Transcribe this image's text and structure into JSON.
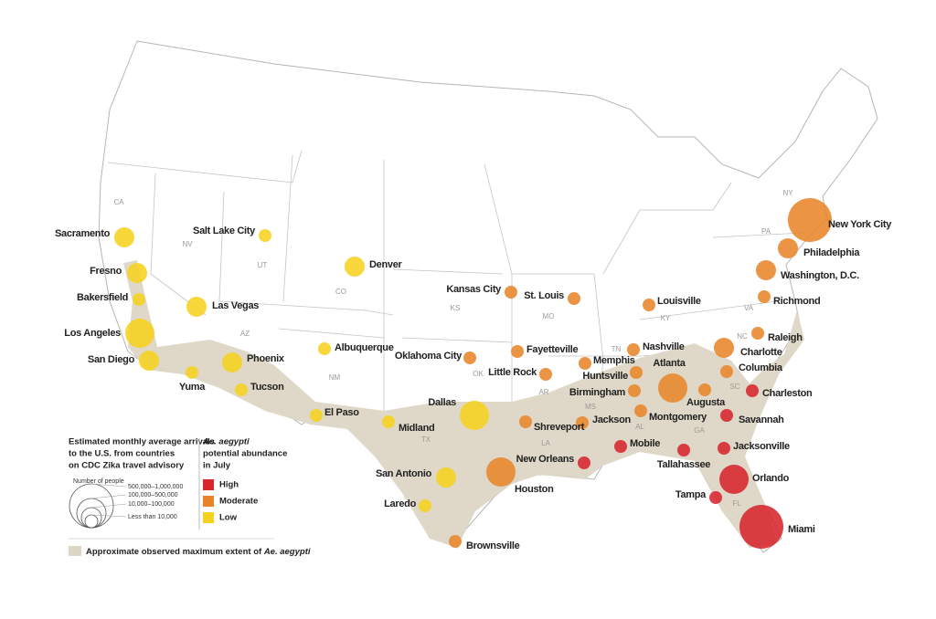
{
  "map": {
    "states": [
      "CA",
      "NV",
      "UT",
      "AZ",
      "CO",
      "NM",
      "KS",
      "MO",
      "OK",
      "TX",
      "AR",
      "LA",
      "MS",
      "AL",
      "GA",
      "FL",
      "SC",
      "NC",
      "TN",
      "KY",
      "VA",
      "PA",
      "NY"
    ],
    "cities": [
      {
        "name": "Sacramento",
        "abundance": "Low",
        "arrivals": "10,000–100,000"
      },
      {
        "name": "Fresno",
        "abundance": "Low",
        "arrivals": "10,000–100,000"
      },
      {
        "name": "Bakersfield",
        "abundance": "Low",
        "arrivals": "Less than 10,000"
      },
      {
        "name": "Los Angeles",
        "abundance": "Low",
        "arrivals": "100,000–500,000"
      },
      {
        "name": "San Diego",
        "abundance": "Low",
        "arrivals": "10,000–100,000"
      },
      {
        "name": "Salt Lake City",
        "abundance": "Low",
        "arrivals": "Less than 10,000"
      },
      {
        "name": "Las Vegas",
        "abundance": "Low",
        "arrivals": "10,000–100,000"
      },
      {
        "name": "Denver",
        "abundance": "Low",
        "arrivals": "10,000–100,000"
      },
      {
        "name": "Albuquerque",
        "abundance": "Low",
        "arrivals": "Less than 10,000"
      },
      {
        "name": "Phoenix",
        "abundance": "Low",
        "arrivals": "10,000–100,000"
      },
      {
        "name": "Tucson",
        "abundance": "Low",
        "arrivals": "Less than 10,000"
      },
      {
        "name": "Yuma",
        "abundance": "Low",
        "arrivals": "Less than 10,000"
      },
      {
        "name": "El Paso",
        "abundance": "Low",
        "arrivals": "Less than 10,000"
      },
      {
        "name": "Midland",
        "abundance": "Low",
        "arrivals": "Less than 10,000"
      },
      {
        "name": "Dallas",
        "abundance": "Low",
        "arrivals": "100,000–500,000"
      },
      {
        "name": "San Antonio",
        "abundance": "Low",
        "arrivals": "10,000–100,000"
      },
      {
        "name": "Laredo",
        "abundance": "Low",
        "arrivals": "Less than 10,000"
      },
      {
        "name": "Kansas City",
        "abundance": "Moderate",
        "arrivals": "Less than 10,000"
      },
      {
        "name": "St. Louis",
        "abundance": "Moderate",
        "arrivals": "Less than 10,000"
      },
      {
        "name": "Louisville",
        "abundance": "Moderate",
        "arrivals": "Less than 10,000"
      },
      {
        "name": "Oklahoma City",
        "abundance": "Moderate",
        "arrivals": "Less than 10,000"
      },
      {
        "name": "Fayetteville",
        "abundance": "Moderate",
        "arrivals": "Less than 10,000"
      },
      {
        "name": "Little Rock",
        "abundance": "Moderate",
        "arrivals": "Less than 10,000"
      },
      {
        "name": "Memphis",
        "abundance": "Moderate",
        "arrivals": "Less than 10,000"
      },
      {
        "name": "Nashville",
        "abundance": "Moderate",
        "arrivals": "Less than 10,000"
      },
      {
        "name": "Huntsville",
        "abundance": "Moderate",
        "arrivals": "Less than 10,000"
      },
      {
        "name": "Birmingham",
        "abundance": "Moderate",
        "arrivals": "Less than 10,000"
      },
      {
        "name": "Atlanta",
        "abundance": "Moderate",
        "arrivals": "100,000–500,000"
      },
      {
        "name": "Augusta",
        "abundance": "Moderate",
        "arrivals": "Less than 10,000"
      },
      {
        "name": "Montgomery",
        "abundance": "Moderate",
        "arrivals": "Less than 10,000"
      },
      {
        "name": "Jackson",
        "abundance": "Moderate",
        "arrivals": "Less than 10,000"
      },
      {
        "name": "Shreveport",
        "abundance": "Moderate",
        "arrivals": "Less than 10,000"
      },
      {
        "name": "Houston",
        "abundance": "Moderate",
        "arrivals": "100,000–500,000"
      },
      {
        "name": "Brownsville",
        "abundance": "Moderate",
        "arrivals": "Less than 10,000"
      },
      {
        "name": "New York City",
        "abundance": "Moderate",
        "arrivals": "500,000–1,000,000"
      },
      {
        "name": "Philadelphia",
        "abundance": "Moderate",
        "arrivals": "10,000–100,000"
      },
      {
        "name": "Washington, D.C.",
        "abundance": "Moderate",
        "arrivals": "10,000–100,000"
      },
      {
        "name": "Richmond",
        "abundance": "Moderate",
        "arrivals": "Less than 10,000"
      },
      {
        "name": "Raleigh",
        "abundance": "Moderate",
        "arrivals": "Less than 10,000"
      },
      {
        "name": "Charlotte",
        "abundance": "Moderate",
        "arrivals": "10,000–100,000"
      },
      {
        "name": "Columbia",
        "abundance": "Moderate",
        "arrivals": "Less than 10,000"
      },
      {
        "name": "Charleston",
        "abundance": "High",
        "arrivals": "Less than 10,000"
      },
      {
        "name": "Savannah",
        "abundance": "High",
        "arrivals": "Less than 10,000"
      },
      {
        "name": "Jacksonville",
        "abundance": "High",
        "arrivals": "Less than 10,000"
      },
      {
        "name": "Tallahassee",
        "abundance": "High",
        "arrivals": "Less than 10,000"
      },
      {
        "name": "Mobile",
        "abundance": "High",
        "arrivals": "Less than 10,000"
      },
      {
        "name": "New Orleans",
        "abundance": "High",
        "arrivals": "Less than 10,000"
      },
      {
        "name": "Orlando",
        "abundance": "High",
        "arrivals": "100,000–500,000"
      },
      {
        "name": "Tampa",
        "abundance": "High",
        "arrivals": "Less than 10,000"
      },
      {
        "name": "Miami",
        "abundance": "High",
        "arrivals": "500,000–1,000,000"
      }
    ]
  },
  "legend": {
    "arrivals_title": [
      "Estimated monthly average arrivals",
      "to the U.S. from countries",
      "on CDC Zika travel advisory"
    ],
    "size_caption": "Number of people",
    "arrival_classes": [
      "500,000–1,000,000",
      "100,000–500,000",
      "10,000–100,000",
      "Less than 10,000"
    ],
    "abundance_title": [
      "Ae. aegypti",
      "potential abundance",
      "in July"
    ],
    "abundance_levels": [
      {
        "label": "High",
        "color": "#d7262c"
      },
      {
        "label": "Moderate",
        "color": "#e8852a"
      },
      {
        "label": "Low",
        "color": "#f6d21e"
      }
    ],
    "extent_text": "Approximate observed maximum extent of",
    "extent_species": "Ae. aegypti",
    "extent_color": "#ddd6c5"
  }
}
